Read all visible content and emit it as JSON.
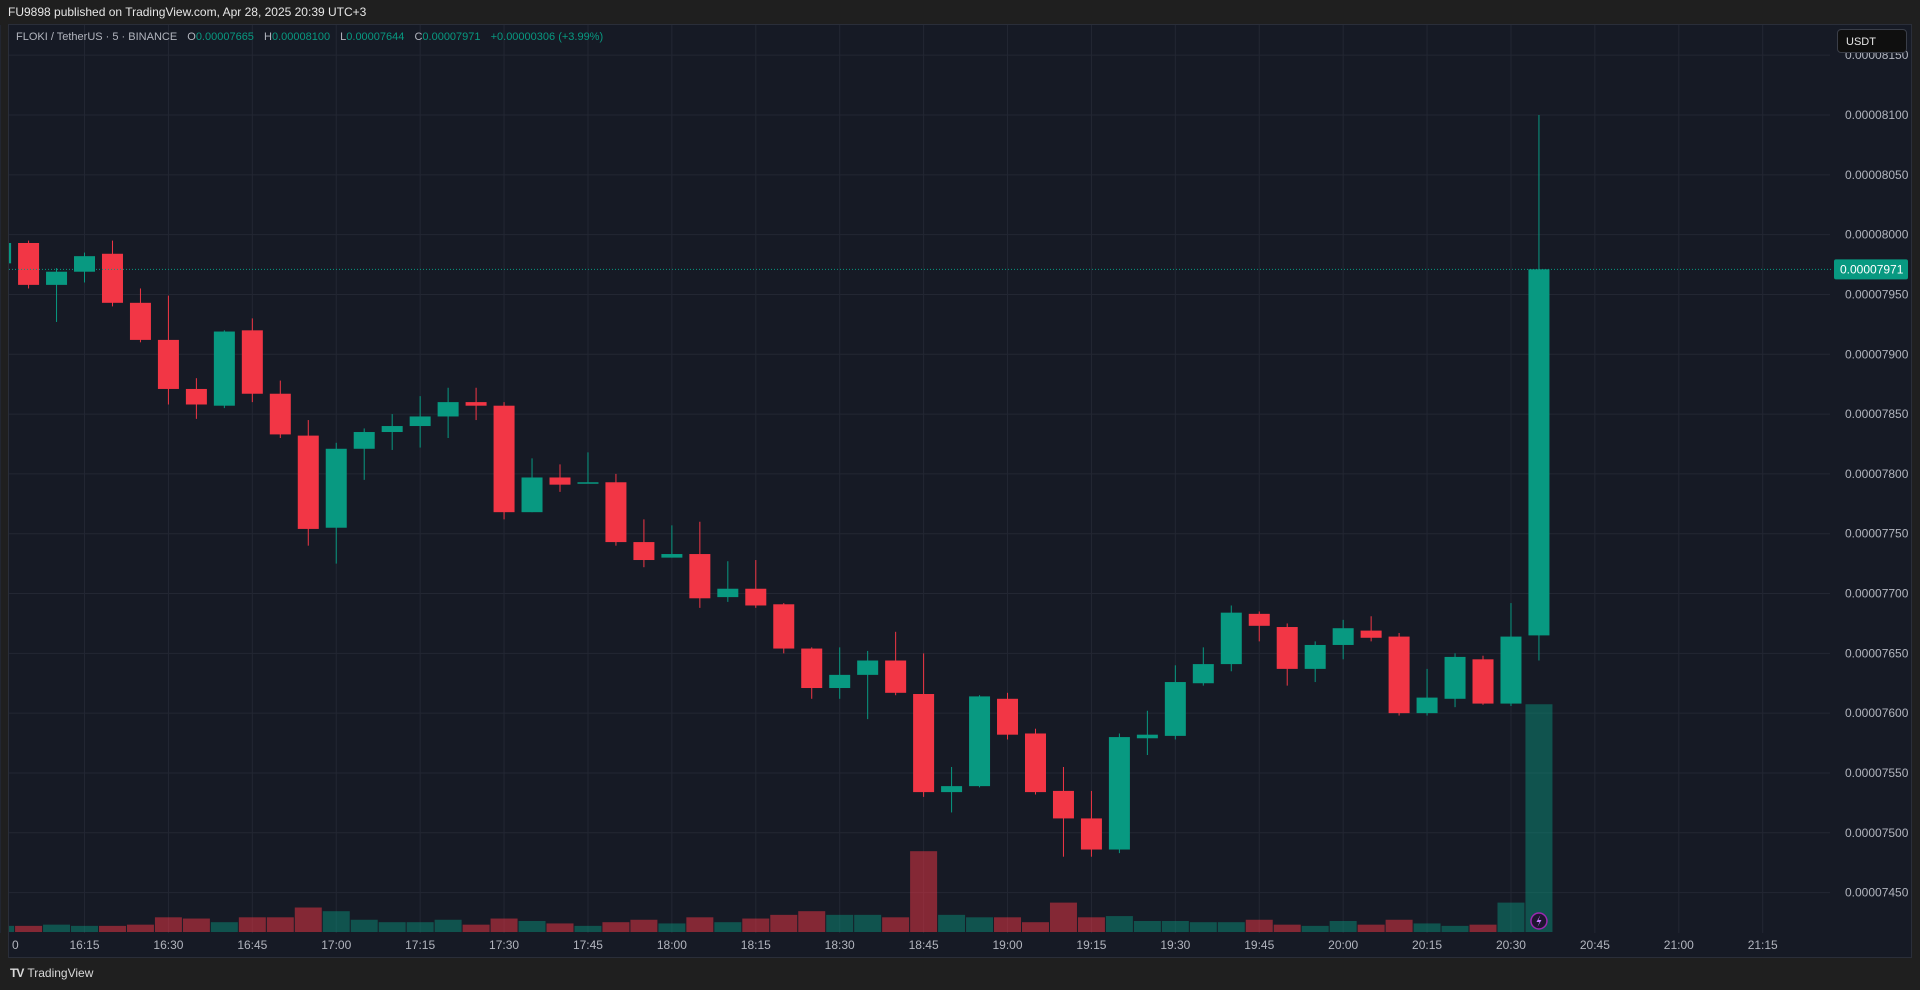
{
  "header": {
    "publish_text": "FU9898 published on TradingView.com, Apr 28, 2025 20:39 UTC+3"
  },
  "legend": {
    "symbol": "FLOKI / TetherUS · 5 · BINANCE",
    "open_label": "O",
    "open": "0.00007665",
    "high_label": "H",
    "high": "0.00008100",
    "low_label": "L",
    "low": "0.00007644",
    "close_label": "C",
    "close": "0.00007971",
    "change": "+0.00000306 (+3.99%)"
  },
  "currency_button": "USDT",
  "footer": {
    "logo_mark": "TV",
    "brand": "TradingView"
  },
  "colors": {
    "up": "#089981",
    "down": "#f23645",
    "background": "#161a25",
    "grid": "#232733",
    "event_icon": "#9c27b0"
  },
  "chart_data": {
    "type": "candlestick",
    "title": "FLOKI / TetherUS · 5 · BINANCE",
    "xlabel": "",
    "ylabel": "USDT",
    "ylim": [
      7.41e-05,
      8.18e-05
    ],
    "price_unit": 1e-08,
    "y_ticks": [
      "0.00008150",
      "0.00008100",
      "0.00008050",
      "0.00008000",
      "0.00007950",
      "0.00007900",
      "0.00007850",
      "0.00007800",
      "0.00007750",
      "0.00007700",
      "0.00007650",
      "0.00007600",
      "0.00007550",
      "0.00007500",
      "0.00007450"
    ],
    "x_ticks": [
      "0",
      "16:15",
      "16:30",
      "16:45",
      "17:00",
      "17:15",
      "17:30",
      "17:45",
      "18:00",
      "18:15",
      "18:30",
      "18:45",
      "19:00",
      "19:15",
      "19:30",
      "19:45",
      "20:00",
      "20:15",
      "20:30",
      "20:45",
      "21:00",
      "21:15"
    ],
    "last_price": "0.00007971",
    "columns": [
      "time",
      "open",
      "high",
      "low",
      "close",
      "volume_relative"
    ],
    "candles": [
      [
        "16:00",
        7976,
        7995,
        7975,
        7993,
        5
      ],
      [
        "16:05",
        7993,
        7995,
        7955,
        7958,
        5
      ],
      [
        "16:10",
        7958,
        7972,
        7927,
        7969,
        6
      ],
      [
        "16:15",
        7969,
        7985,
        7960,
        7982,
        5
      ],
      [
        "16:20",
        7984,
        7995,
        7940,
        7943,
        5
      ],
      [
        "16:25",
        7943,
        7955,
        7910,
        7912,
        6
      ],
      [
        "16:30",
        7912,
        7949,
        7858,
        7871,
        12
      ],
      [
        "16:35",
        7871,
        7880,
        7846,
        7858,
        11
      ],
      [
        "16:40",
        7857,
        7920,
        7855,
        7919,
        8
      ],
      [
        "16:45",
        7920,
        7930,
        7860,
        7867,
        12
      ],
      [
        "16:50",
        7867,
        7878,
        7830,
        7833,
        12
      ],
      [
        "16:55",
        7832,
        7845,
        7740,
        7754,
        20
      ],
      [
        "17:00",
        7755,
        7826,
        7725,
        7821,
        17
      ],
      [
        "17:05",
        7821,
        7838,
        7795,
        7835,
        10
      ],
      [
        "17:10",
        7835,
        7850,
        7820,
        7840,
        8
      ],
      [
        "17:15",
        7840,
        7865,
        7822,
        7848,
        8
      ],
      [
        "17:20",
        7848,
        7872,
        7830,
        7860,
        10
      ],
      [
        "17:25",
        7860,
        7872,
        7845,
        7857,
        6
      ],
      [
        "17:30",
        7857,
        7860,
        7762,
        7768,
        11
      ],
      [
        "17:35",
        7768,
        7813,
        7768,
        7797,
        9
      ],
      [
        "17:40",
        7797,
        7808,
        7785,
        7791,
        7
      ],
      [
        "17:45",
        7792,
        7818,
        7792,
        7793,
        5
      ],
      [
        "17:50",
        7793,
        7800,
        7740,
        7743,
        8
      ],
      [
        "17:55",
        7743,
        7762,
        7722,
        7728,
        10
      ],
      [
        "18:00",
        7730,
        7757,
        7730,
        7733,
        7
      ],
      [
        "18:05",
        7733,
        7760,
        7688,
        7696,
        12
      ],
      [
        "18:10",
        7697,
        7727,
        7693,
        7704,
        8
      ],
      [
        "18:15",
        7704,
        7728,
        7688,
        7690,
        11
      ],
      [
        "18:20",
        7691,
        7692,
        7650,
        7654,
        14
      ],
      [
        "18:25",
        7654,
        7655,
        7612,
        7621,
        17
      ],
      [
        "18:30",
        7621,
        7655,
        7612,
        7632,
        14
      ],
      [
        "18:35",
        7632,
        7652,
        7595,
        7644,
        14
      ],
      [
        "18:40",
        7644,
        7668,
        7615,
        7617,
        12
      ],
      [
        "18:45",
        7616,
        7650,
        7530,
        7534,
        66
      ],
      [
        "18:50",
        7534,
        7555,
        7517,
        7539,
        14
      ],
      [
        "18:55",
        7539,
        7615,
        7538,
        7614,
        12
      ],
      [
        "19:00",
        7612,
        7617,
        7578,
        7582,
        12
      ],
      [
        "19:05",
        7583,
        7587,
        7532,
        7534,
        8
      ],
      [
        "19:10",
        7535,
        7555,
        7480,
        7512,
        24
      ],
      [
        "19:15",
        7512,
        7535,
        7480,
        7486,
        12
      ],
      [
        "19:20",
        7486,
        7583,
        7483,
        7580,
        13
      ],
      [
        "19:25",
        7579,
        7602,
        7565,
        7582,
        9
      ],
      [
        "19:30",
        7581,
        7640,
        7578,
        7626,
        9
      ],
      [
        "19:35",
        7625,
        7655,
        7623,
        7641,
        8
      ],
      [
        "19:40",
        7641,
        7690,
        7635,
        7684,
        8
      ],
      [
        "19:45",
        7683,
        7685,
        7660,
        7673,
        10
      ],
      [
        "19:50",
        7672,
        7675,
        7623,
        7637,
        6
      ],
      [
        "19:55",
        7637,
        7660,
        7626,
        7657,
        5
      ],
      [
        "20:00",
        7657,
        7678,
        7645,
        7671,
        9
      ],
      [
        "20:05",
        7669,
        7681,
        7660,
        7663,
        6
      ],
      [
        "20:10",
        7664,
        7667,
        7598,
        7600,
        10
      ],
      [
        "20:15",
        7600,
        7637,
        7598,
        7613,
        7
      ],
      [
        "20:20",
        7612,
        7650,
        7605,
        7647,
        5
      ],
      [
        "20:25",
        7645,
        7648,
        7607,
        7608,
        6
      ],
      [
        "20:30",
        7608,
        7692,
        7606,
        7664,
        24
      ],
      [
        "20:35",
        7665,
        8100,
        7644,
        7971,
        186
      ]
    ]
  }
}
